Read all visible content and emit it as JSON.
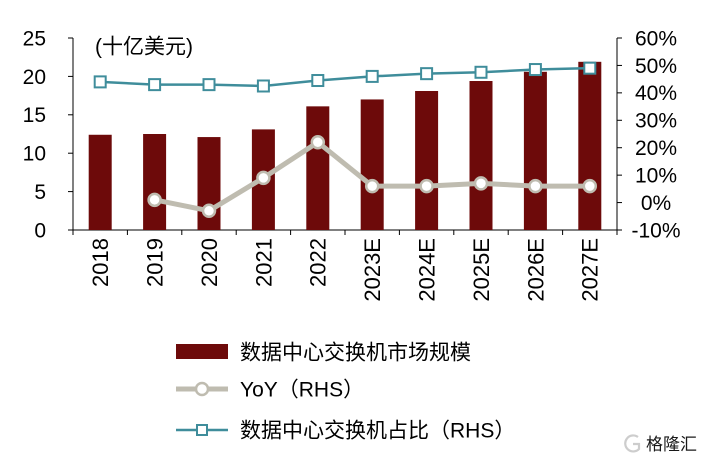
{
  "chart_data": {
    "type": "bar",
    "categories": [
      "2018",
      "2019",
      "2020",
      "2021",
      "2022",
      "2023E",
      "2024E",
      "2025E",
      "2026E",
      "2027E"
    ],
    "series": [
      {
        "name": "数据中心交换机市场规模",
        "type": "bar",
        "axis": "left",
        "color": "#6D0A0A",
        "values": [
          12.4,
          12.5,
          12.1,
          13.1,
          16.1,
          17.0,
          18.1,
          19.4,
          20.6,
          21.9
        ]
      },
      {
        "name": "YoY（RHS）",
        "type": "line",
        "axis": "right",
        "marker": "circle",
        "color": "#BFBCB0",
        "values": [
          null,
          1,
          -3,
          9,
          22,
          6,
          6,
          7,
          6,
          6
        ]
      },
      {
        "name": "数据中心交换机占比（RHS）",
        "type": "line",
        "axis": "right",
        "marker": "square",
        "color": "#3F8D9B",
        "values": [
          44,
          43,
          43,
          42.5,
          44.5,
          46,
          47,
          47.5,
          48.5,
          49
        ]
      }
    ],
    "ylabel": "(十亿美元)",
    "ylim": [
      0,
      25
    ],
    "yticks": [
      "0",
      "5",
      "10",
      "15",
      "20",
      "25"
    ],
    "y2lim": [
      -10,
      60
    ],
    "y2ticks": [
      "-10%",
      "0%",
      "10%",
      "20%",
      "30%",
      "40%",
      "50%",
      "60%"
    ],
    "grid": false,
    "legend": "bottom"
  },
  "watermark": {
    "text": "格隆汇",
    "color": "#C8C8C8"
  }
}
